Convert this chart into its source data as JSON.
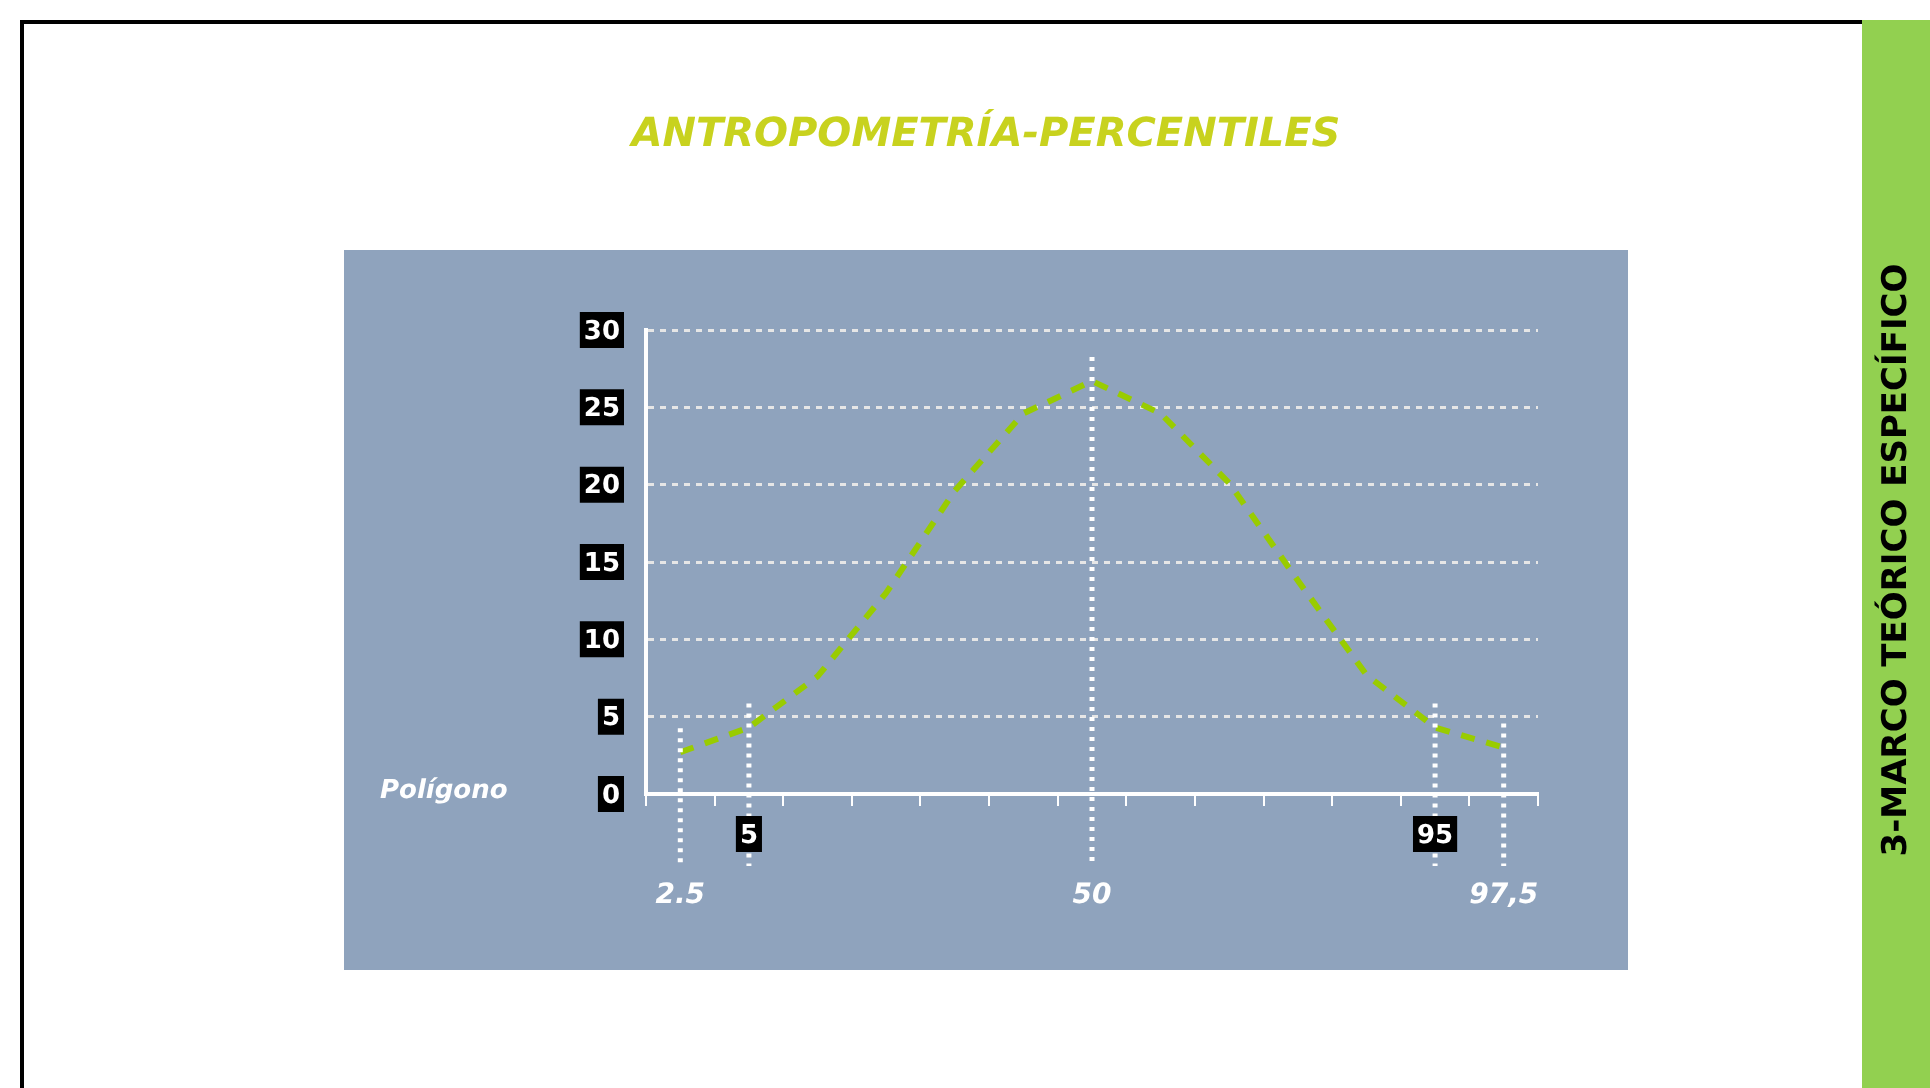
{
  "chart_data": {
    "type": "line",
    "title": "ANTROPOMETRÍA-PERCENTILES",
    "categories": [
      "2.5",
      "5",
      null,
      null,
      null,
      null,
      "50",
      null,
      null,
      null,
      null,
      "95",
      "97,5"
    ],
    "series": [
      {
        "color": "#99cc00",
        "values": [
          2.7,
          4.3,
          7.6,
          13.0,
          19.6,
          24.6,
          26.7,
          24.6,
          20.1,
          13.8,
          7.7,
          4.3,
          3.0
        ]
      }
    ],
    "ylim": [
      0,
      30
    ],
    "yticks": [
      0,
      5,
      10,
      15,
      20,
      25,
      30
    ],
    "grid": "y",
    "marker": "none",
    "line_style": "dashed",
    "ref_lines": [
      {
        "axis": "x",
        "value": "2.5"
      },
      {
        "axis": "x",
        "value": "5"
      },
      {
        "axis": "x",
        "value": "50"
      },
      {
        "axis": "x",
        "value": "95"
      },
      {
        "axis": "x",
        "value": "97,5"
      }
    ],
    "annotations": [
      "Polígono",
      "3-MARCO TEÓRICO ESPECÍFICO"
    ]
  }
}
